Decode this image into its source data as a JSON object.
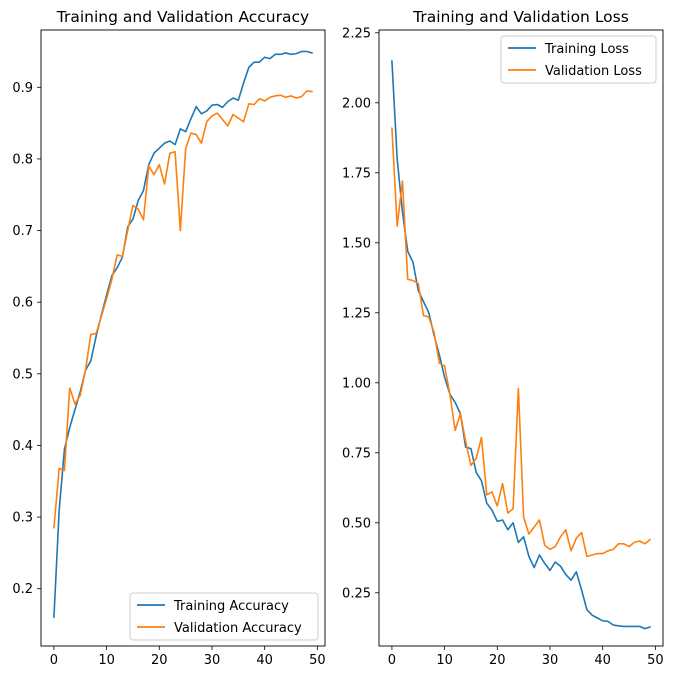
{
  "chart_data": [
    {
      "type": "line",
      "title": "Training and Validation Accuracy",
      "xlabel": "",
      "ylabel": "",
      "xlim": [
        -2.45,
        51.45
      ],
      "ylim": [
        0.12,
        0.98
      ],
      "xticks": [
        0,
        10,
        20,
        30,
        40,
        50
      ],
      "yticks": [
        0.2,
        0.3,
        0.4,
        0.5,
        0.6,
        0.7,
        0.8,
        0.9
      ],
      "xtick_labels": [
        "0",
        "10",
        "20",
        "30",
        "40",
        "50"
      ],
      "ytick_labels": [
        "0.2",
        "0.3",
        "0.4",
        "0.5",
        "0.6",
        "0.7",
        "0.8",
        "0.9"
      ],
      "grid": false,
      "legend_position": "lower-right",
      "x": [
        0,
        1,
        2,
        3,
        4,
        5,
        6,
        7,
        8,
        9,
        10,
        11,
        12,
        13,
        14,
        15,
        16,
        17,
        18,
        19,
        20,
        21,
        22,
        23,
        24,
        25,
        26,
        27,
        28,
        29,
        30,
        31,
        32,
        33,
        34,
        35,
        36,
        37,
        38,
        39,
        40,
        41,
        42,
        43,
        44,
        45,
        46,
        47,
        48,
        49
      ],
      "series": [
        {
          "name": "Training Accuracy",
          "color": "#1f77b4",
          "values": [
            0.16,
            0.31,
            0.395,
            0.425,
            0.45,
            0.475,
            0.505,
            0.518,
            0.552,
            0.582,
            0.61,
            0.637,
            0.648,
            0.663,
            0.705,
            0.716,
            0.742,
            0.756,
            0.792,
            0.808,
            0.815,
            0.822,
            0.825,
            0.82,
            0.842,
            0.838,
            0.856,
            0.873,
            0.863,
            0.867,
            0.875,
            0.876,
            0.872,
            0.88,
            0.885,
            0.882,
            0.906,
            0.928,
            0.935,
            0.935,
            0.942,
            0.94,
            0.946,
            0.946,
            0.948,
            0.946,
            0.947,
            0.95,
            0.95,
            0.948
          ]
        },
        {
          "name": "Validation Accuracy",
          "color": "#ff7f0e",
          "values": [
            0.285,
            0.368,
            0.365,
            0.48,
            0.458,
            0.47,
            0.505,
            0.555,
            0.556,
            0.58,
            0.605,
            0.632,
            0.666,
            0.664,
            0.7,
            0.735,
            0.73,
            0.715,
            0.79,
            0.778,
            0.792,
            0.765,
            0.808,
            0.81,
            0.7,
            0.814,
            0.836,
            0.834,
            0.822,
            0.852,
            0.86,
            0.864,
            0.855,
            0.846,
            0.862,
            0.857,
            0.852,
            0.877,
            0.876,
            0.884,
            0.881,
            0.886,
            0.888,
            0.889,
            0.886,
            0.888,
            0.885,
            0.887,
            0.895,
            0.894
          ]
        }
      ]
    },
    {
      "type": "line",
      "title": "Training and Validation Loss",
      "xlabel": "",
      "ylabel": "",
      "xlim": [
        -2.45,
        51.45
      ],
      "ylim": [
        0.06,
        2.26
      ],
      "xticks": [
        0,
        10,
        20,
        30,
        40,
        50
      ],
      "yticks": [
        0.25,
        0.5,
        0.75,
        1.0,
        1.25,
        1.5,
        1.75,
        2.0,
        2.25
      ],
      "xtick_labels": [
        "0",
        "10",
        "20",
        "30",
        "40",
        "50"
      ],
      "ytick_labels": [
        "0.25",
        "0.50",
        "0.75",
        "1.00",
        "1.25",
        "1.50",
        "1.75",
        "2.00",
        "2.25"
      ],
      "grid": false,
      "legend_position": "upper-right",
      "x": [
        0,
        1,
        2,
        3,
        4,
        5,
        6,
        7,
        8,
        9,
        10,
        11,
        12,
        13,
        14,
        15,
        16,
        17,
        18,
        19,
        20,
        21,
        22,
        23,
        24,
        25,
        26,
        27,
        28,
        29,
        30,
        31,
        32,
        33,
        34,
        35,
        36,
        37,
        38,
        39,
        40,
        41,
        42,
        43,
        44,
        45,
        46,
        47,
        48,
        49
      ],
      "series": [
        {
          "name": "Training Loss",
          "color": "#1f77b4",
          "values": [
            2.15,
            1.8,
            1.61,
            1.47,
            1.43,
            1.33,
            1.29,
            1.25,
            1.17,
            1.1,
            1.02,
            0.96,
            0.93,
            0.89,
            0.77,
            0.765,
            0.68,
            0.65,
            0.57,
            0.545,
            0.505,
            0.51,
            0.475,
            0.5,
            0.43,
            0.45,
            0.38,
            0.34,
            0.385,
            0.355,
            0.33,
            0.36,
            0.345,
            0.315,
            0.295,
            0.325,
            0.26,
            0.19,
            0.17,
            0.16,
            0.15,
            0.148,
            0.135,
            0.132,
            0.13,
            0.13,
            0.13,
            0.13,
            0.122,
            0.128
          ]
        },
        {
          "name": "Validation Loss",
          "color": "#ff7f0e",
          "values": [
            1.91,
            1.56,
            1.72,
            1.37,
            1.365,
            1.355,
            1.24,
            1.235,
            1.18,
            1.07,
            1.06,
            0.96,
            0.83,
            0.89,
            0.79,
            0.705,
            0.73,
            0.805,
            0.6,
            0.61,
            0.56,
            0.64,
            0.535,
            0.55,
            0.98,
            0.52,
            0.46,
            0.485,
            0.51,
            0.42,
            0.405,
            0.415,
            0.45,
            0.475,
            0.4,
            0.445,
            0.465,
            0.38,
            0.385,
            0.39,
            0.39,
            0.4,
            0.405,
            0.425,
            0.425,
            0.415,
            0.43,
            0.435,
            0.425,
            0.44
          ]
        }
      ]
    }
  ]
}
